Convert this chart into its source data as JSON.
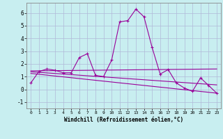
{
  "background_color": "#c8eef0",
  "grid_color": "#b0b8d8",
  "line_color": "#990099",
  "marker_color": "#990099",
  "xlabel": "Windchill (Refroidissement éolien,°C)",
  "ylim": [
    -1.5,
    6.8
  ],
  "xlim": [
    -0.5,
    23.5
  ],
  "yticks": [
    -1,
    0,
    1,
    2,
    3,
    4,
    5,
    6
  ],
  "xticks": [
    0,
    1,
    2,
    3,
    4,
    5,
    6,
    7,
    8,
    9,
    10,
    11,
    12,
    13,
    14,
    15,
    16,
    17,
    18,
    19,
    20,
    21,
    22,
    23
  ],
  "series1": {
    "x": [
      0,
      1,
      2,
      3,
      4,
      5,
      6,
      7,
      8,
      9,
      10,
      11,
      12,
      13,
      14,
      15,
      16,
      17,
      18,
      19,
      20,
      21,
      22,
      23
    ],
    "y": [
      0.5,
      1.4,
      1.6,
      1.5,
      1.3,
      1.3,
      2.5,
      2.8,
      1.1,
      1.0,
      2.3,
      5.3,
      5.4,
      6.3,
      5.7,
      3.3,
      1.2,
      1.55,
      0.5,
      0.1,
      -0.15,
      0.9,
      0.3,
      -0.3
    ]
  },
  "series2": {
    "x": [
      0,
      23
    ],
    "y": [
      1.45,
      1.6
    ]
  },
  "series3": {
    "x": [
      0,
      23
    ],
    "y": [
      1.38,
      0.35
    ]
  },
  "series4": {
    "x": [
      0,
      23
    ],
    "y": [
      1.25,
      -0.3
    ]
  }
}
